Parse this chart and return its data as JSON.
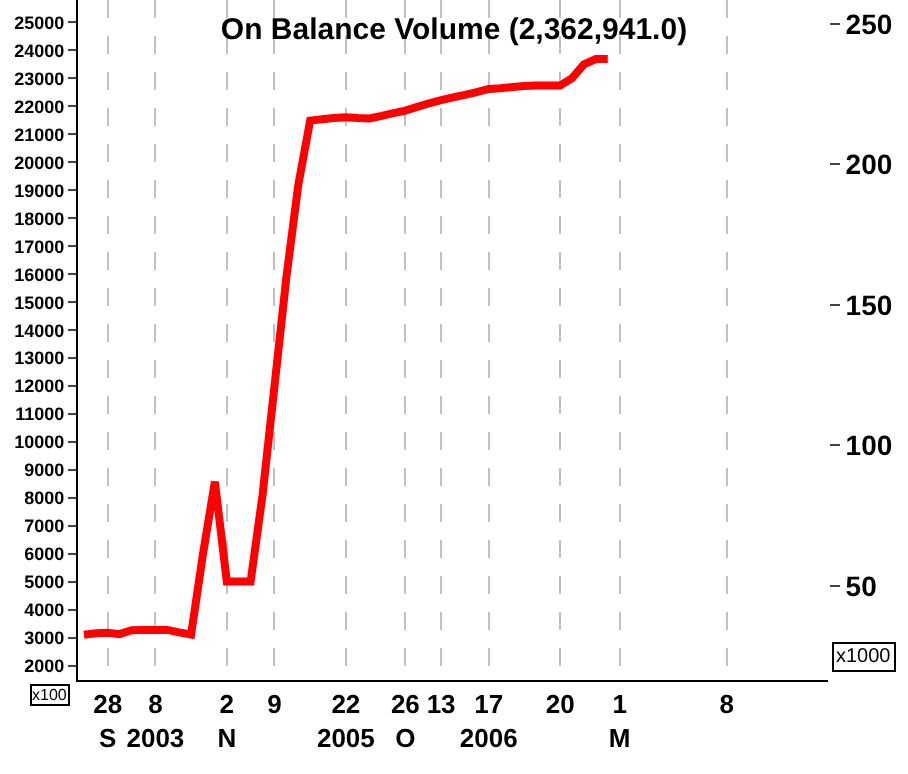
{
  "chart_data": {
    "type": "line",
    "title": "On Balance Volume (2,362,941.0)",
    "categories": [
      null,
      null,
      "28\nS",
      null,
      null,
      null,
      "8\n2003",
      null,
      null,
      null,
      null,
      null,
      "2\nN",
      null,
      null,
      null,
      "9",
      null,
      null,
      null,
      null,
      null,
      "22\n2005",
      null,
      null,
      null,
      null,
      "26\nO",
      null,
      null,
      "13",
      null,
      null,
      null,
      "17\n2006",
      null,
      null,
      null,
      null,
      null,
      "20",
      null,
      null,
      null,
      null,
      "1\nM",
      null,
      null,
      null,
      null,
      null,
      null,
      null,
      null,
      "8",
      null,
      null,
      null,
      null,
      null,
      null,
      null,
      null
    ],
    "series": [
      {
        "color": "#ff0000",
        "values": [
          3120,
          3170,
          3190,
          3140,
          3280,
          3290,
          3290,
          3290,
          3200,
          3120,
          6010,
          8590,
          5020,
          5020,
          5020,
          8100,
          11980,
          15880,
          19180,
          21490,
          21540,
          21580,
          21610,
          21580,
          21570,
          21660,
          21760,
          21850,
          21980,
          22110,
          22220,
          22320,
          22410,
          22510,
          22620,
          22650,
          22690,
          22730,
          22740,
          22740,
          22740,
          23010,
          23500,
          23690,
          23690,
          null,
          null,
          null,
          null,
          null,
          null,
          null,
          null,
          null,
          null,
          null,
          null,
          null,
          null,
          null,
          null,
          null,
          null
        ]
      }
    ],
    "ylim": [
      1500,
      25800
    ],
    "yticks": [
      2000,
      3000,
      4000,
      5000,
      6000,
      7000,
      8000,
      9000,
      10000,
      11000,
      12000,
      13000,
      14000,
      15000,
      16000,
      17000,
      18000,
      19000,
      20000,
      21000,
      22000,
      23000,
      24000,
      25000
    ],
    "y2lim": [
      16.5,
      258.5
    ],
    "y2ticks": [
      50,
      100,
      150,
      200,
      250
    ],
    "annotations": [
      "x100",
      "x1000"
    ],
    "grid": "x",
    "marker": "none",
    "line_style": "solid"
  }
}
